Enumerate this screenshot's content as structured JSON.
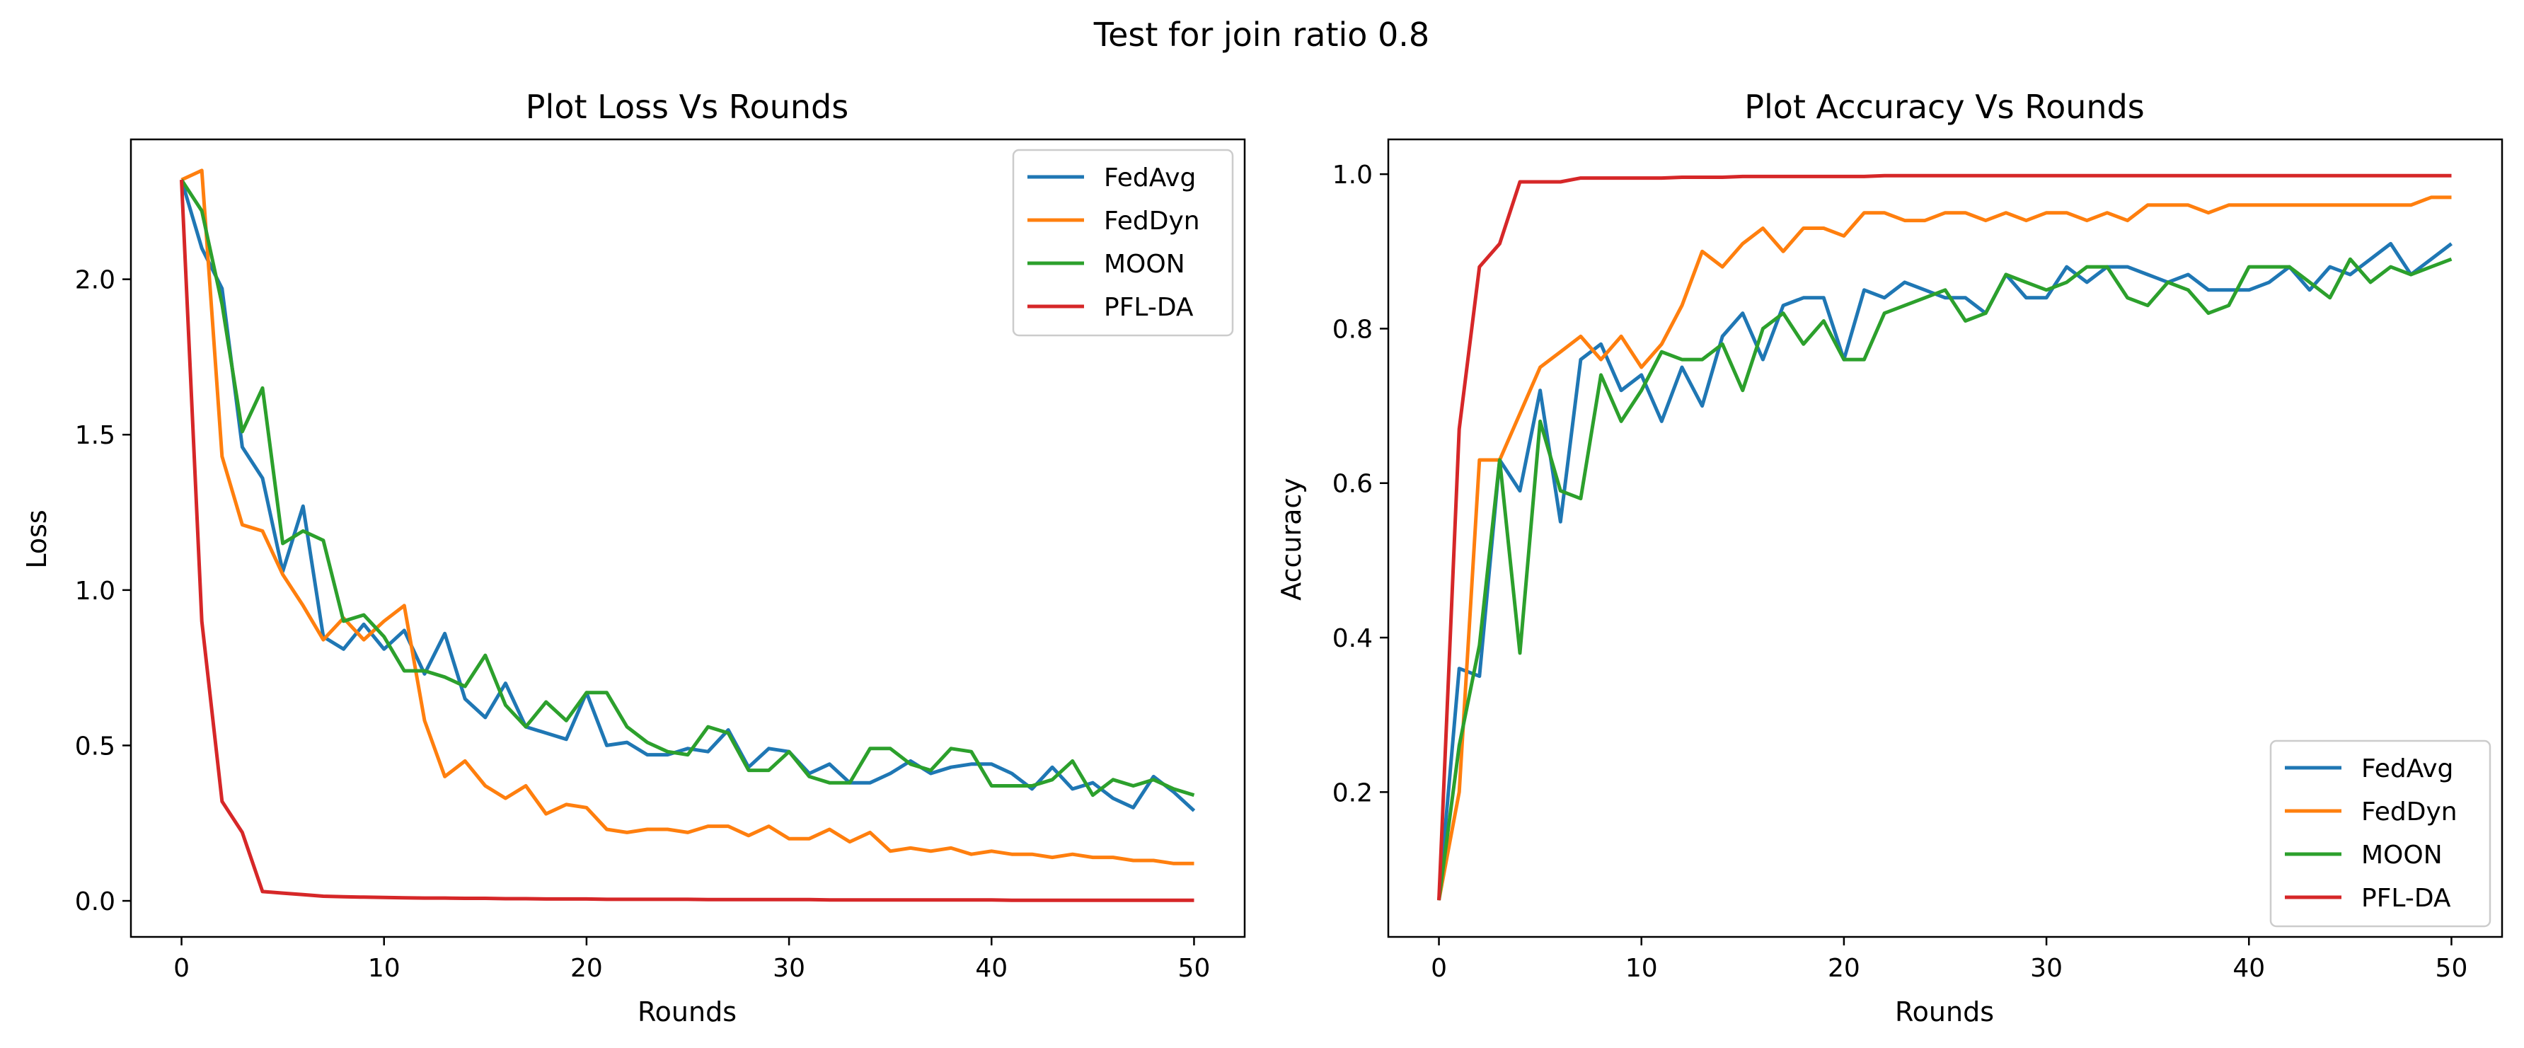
{
  "suptitle": "Test for join ratio 0.8",
  "chart_data": [
    {
      "type": "line",
      "title": "Plot Loss Vs Rounds",
      "xlabel": "Rounds",
      "ylabel": "Loss",
      "xlim": [
        -2.5,
        52.5
      ],
      "ylim": [
        -0.116,
        2.45
      ],
      "xticks": [
        0,
        10,
        20,
        30,
        40,
        50
      ],
      "yticks": [
        0.0,
        0.5,
        1.0,
        1.5,
        2.0
      ],
      "ytick_labels": [
        "0.0",
        "0.5",
        "1.0",
        "1.5",
        "2.0"
      ],
      "grid": false,
      "legend_position": "upper right",
      "series": [
        {
          "name": "FedAvg",
          "color": "#1f77b4",
          "values": [
            2.32,
            2.1,
            1.97,
            1.46,
            1.36,
            1.06,
            1.27,
            0.85,
            0.81,
            0.89,
            0.81,
            0.87,
            0.73,
            0.86,
            0.65,
            0.59,
            0.7,
            0.56,
            0.54,
            0.52,
            0.67,
            0.5,
            0.51,
            0.47,
            0.47,
            0.49,
            0.48,
            0.55,
            0.43,
            0.49,
            0.48,
            0.41,
            0.44,
            0.38,
            0.38,
            0.41,
            0.45,
            0.41,
            0.43,
            0.44,
            0.44,
            0.41,
            0.36,
            0.43,
            0.36,
            0.38,
            0.33,
            0.3,
            0.4,
            0.35,
            0.29
          ]
        },
        {
          "name": "FedDyn",
          "color": "#ff7f0e",
          "values": [
            2.32,
            2.35,
            1.43,
            1.21,
            1.19,
            1.05,
            0.95,
            0.84,
            0.91,
            0.84,
            0.9,
            0.95,
            0.58,
            0.4,
            0.45,
            0.37,
            0.33,
            0.37,
            0.28,
            0.31,
            0.3,
            0.23,
            0.22,
            0.23,
            0.23,
            0.22,
            0.24,
            0.24,
            0.21,
            0.24,
            0.2,
            0.2,
            0.23,
            0.19,
            0.22,
            0.16,
            0.17,
            0.16,
            0.17,
            0.15,
            0.16,
            0.15,
            0.15,
            0.14,
            0.15,
            0.14,
            0.14,
            0.13,
            0.13,
            0.12,
            0.12
          ]
        },
        {
          "name": "MOON",
          "color": "#2ca02c",
          "values": [
            2.32,
            2.22,
            1.92,
            1.51,
            1.65,
            1.15,
            1.19,
            1.16,
            0.9,
            0.92,
            0.85,
            0.74,
            0.74,
            0.72,
            0.69,
            0.79,
            0.63,
            0.56,
            0.64,
            0.58,
            0.67,
            0.67,
            0.56,
            0.51,
            0.48,
            0.47,
            0.56,
            0.54,
            0.42,
            0.42,
            0.48,
            0.4,
            0.38,
            0.38,
            0.49,
            0.49,
            0.44,
            0.42,
            0.49,
            0.48,
            0.37,
            0.37,
            0.37,
            0.39,
            0.45,
            0.34,
            0.39,
            0.37,
            0.39,
            0.36,
            0.34
          ]
        },
        {
          "name": "PFL-DA",
          "color": "#d62728",
          "values": [
            2.32,
            0.9,
            0.32,
            0.22,
            0.03,
            0.025,
            0.02,
            0.015,
            0.013,
            0.012,
            0.011,
            0.01,
            0.009,
            0.009,
            0.008,
            0.008,
            0.007,
            0.007,
            0.006,
            0.006,
            0.006,
            0.005,
            0.005,
            0.005,
            0.005,
            0.005,
            0.004,
            0.004,
            0.004,
            0.004,
            0.004,
            0.004,
            0.003,
            0.003,
            0.003,
            0.003,
            0.003,
            0.003,
            0.003,
            0.003,
            0.003,
            0.002,
            0.002,
            0.002,
            0.002,
            0.002,
            0.002,
            0.002,
            0.002,
            0.002,
            0.002
          ]
        }
      ]
    },
    {
      "type": "line",
      "title": "Plot Accuracy Vs Rounds",
      "xlabel": "Rounds",
      "ylabel": "Accuracy",
      "xlim": [
        -2.5,
        52.5
      ],
      "ylim": [
        0.0125,
        1.045
      ],
      "xticks": [
        0,
        10,
        20,
        30,
        40,
        50
      ],
      "yticks": [
        0.2,
        0.4,
        0.6,
        0.8,
        1.0
      ],
      "ytick_labels": [
        "0.2",
        "0.4",
        "0.6",
        "0.8",
        "1.0"
      ],
      "grid": false,
      "legend_position": "lower right",
      "series": [
        {
          "name": "FedAvg",
          "color": "#1f77b4",
          "values": [
            0.06,
            0.36,
            0.35,
            0.63,
            0.59,
            0.72,
            0.55,
            0.76,
            0.78,
            0.72,
            0.74,
            0.68,
            0.75,
            0.7,
            0.79,
            0.82,
            0.76,
            0.83,
            0.84,
            0.84,
            0.76,
            0.85,
            0.84,
            0.86,
            0.85,
            0.84,
            0.84,
            0.82,
            0.87,
            0.84,
            0.84,
            0.88,
            0.86,
            0.88,
            0.88,
            0.87,
            0.86,
            0.87,
            0.85,
            0.85,
            0.85,
            0.86,
            0.88,
            0.85,
            0.88,
            0.87,
            0.89,
            0.91,
            0.87,
            0.89,
            0.91
          ]
        },
        {
          "name": "FedDyn",
          "color": "#ff7f0e",
          "values": [
            0.06,
            0.2,
            0.63,
            0.63,
            0.69,
            0.75,
            0.77,
            0.79,
            0.76,
            0.79,
            0.75,
            0.78,
            0.83,
            0.9,
            0.88,
            0.91,
            0.93,
            0.9,
            0.93,
            0.93,
            0.92,
            0.95,
            0.95,
            0.94,
            0.94,
            0.95,
            0.95,
            0.94,
            0.95,
            0.94,
            0.95,
            0.95,
            0.94,
            0.95,
            0.94,
            0.96,
            0.96,
            0.96,
            0.95,
            0.96,
            0.96,
            0.96,
            0.96,
            0.96,
            0.96,
            0.96,
            0.96,
            0.96,
            0.96,
            0.97,
            0.97
          ]
        },
        {
          "name": "MOON",
          "color": "#2ca02c",
          "values": [
            0.06,
            0.26,
            0.39,
            0.63,
            0.38,
            0.68,
            0.59,
            0.58,
            0.74,
            0.68,
            0.72,
            0.77,
            0.76,
            0.76,
            0.78,
            0.72,
            0.8,
            0.82,
            0.78,
            0.81,
            0.76,
            0.76,
            0.82,
            0.83,
            0.84,
            0.85,
            0.81,
            0.82,
            0.87,
            0.86,
            0.85,
            0.86,
            0.88,
            0.88,
            0.84,
            0.83,
            0.86,
            0.85,
            0.82,
            0.83,
            0.88,
            0.88,
            0.88,
            0.86,
            0.84,
            0.89,
            0.86,
            0.88,
            0.87,
            0.88,
            0.89
          ]
        },
        {
          "name": "PFL-DA",
          "color": "#d62728",
          "values": [
            0.06,
            0.67,
            0.88,
            0.91,
            0.99,
            0.99,
            0.99,
            0.995,
            0.995,
            0.995,
            0.995,
            0.995,
            0.996,
            0.996,
            0.996,
            0.997,
            0.997,
            0.997,
            0.997,
            0.997,
            0.997,
            0.997,
            0.998,
            0.998,
            0.998,
            0.998,
            0.998,
            0.998,
            0.998,
            0.998,
            0.998,
            0.998,
            0.998,
            0.998,
            0.998,
            0.998,
            0.998,
            0.998,
            0.998,
            0.998,
            0.998,
            0.998,
            0.998,
            0.998,
            0.998,
            0.998,
            0.998,
            0.998,
            0.998,
            0.998,
            0.998
          ]
        }
      ]
    }
  ]
}
